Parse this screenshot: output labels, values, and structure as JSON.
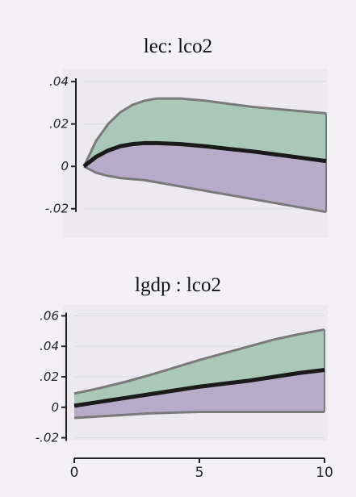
{
  "chart_data": [
    {
      "type": "area",
      "title": "lec: lco2",
      "xlabel": "",
      "ylabel": "",
      "xlim": [
        0,
        10
      ],
      "ylim": [
        -0.022,
        0.045
      ],
      "y_ticks": [
        0.04,
        0.02,
        0,
        -0.02
      ],
      "y_tick_labels": [
        ".04",
        ".02",
        "0",
        "-.02"
      ],
      "show_x_ticks": false,
      "grid": true,
      "x": [
        0,
        0.5,
        1,
        1.5,
        2,
        2.5,
        3,
        4,
        5,
        6,
        7,
        8,
        9,
        10
      ],
      "y": [
        0,
        0.0045,
        0.0075,
        0.0095,
        0.0105,
        0.011,
        0.011,
        0.0105,
        0.0095,
        0.0082,
        0.007,
        0.0055,
        0.004,
        0.0025
      ],
      "lower": [
        0,
        -0.003,
        -0.0045,
        -0.0055,
        -0.006,
        -0.0065,
        -0.0075,
        -0.0095,
        -0.0115,
        -0.0135,
        -0.0155,
        -0.0175,
        -0.0195,
        -0.0215
      ],
      "upper": [
        0,
        0.012,
        0.02,
        0.0255,
        0.029,
        0.031,
        0.032,
        0.032,
        0.031,
        0.0295,
        0.028,
        0.027,
        0.026,
        0.025
      ],
      "colors": {
        "upper_band": "#a3c4b3",
        "lower_band": "#b0a5c5",
        "line": "#1a1a1a",
        "band_edge": "#7a7a7a"
      }
    },
    {
      "type": "area",
      "title": "lgdp : lco2",
      "xlabel": "",
      "ylabel": "",
      "xlim": [
        0,
        10
      ],
      "ylim": [
        -0.025,
        0.065
      ],
      "y_ticks": [
        0.06,
        0.04,
        0.02,
        0,
        -0.02
      ],
      "y_tick_labels": [
        ".06",
        ".04",
        ".02",
        "0",
        "-.02"
      ],
      "x_ticks": [
        0,
        5,
        10
      ],
      "x_tick_labels": [
        "0",
        "5",
        "10"
      ],
      "grid": true,
      "x": [
        0,
        1,
        2,
        3,
        4,
        5,
        6,
        7,
        8,
        9,
        10
      ],
      "y": [
        0.001,
        0.0035,
        0.006,
        0.0085,
        0.011,
        0.0135,
        0.0155,
        0.0175,
        0.02,
        0.0225,
        0.0245
      ],
      "lower": [
        -0.007,
        -0.006,
        -0.005,
        -0.004,
        -0.0035,
        -0.003,
        -0.003,
        -0.003,
        -0.003,
        -0.003,
        -0.003
      ],
      "upper": [
        0.009,
        0.0125,
        0.0165,
        0.021,
        0.026,
        0.031,
        0.0355,
        0.04,
        0.0445,
        0.048,
        0.051
      ],
      "colors": {
        "upper_band": "#a3c4b3",
        "lower_band": "#b0a5c5",
        "line": "#1a1a1a",
        "band_edge": "#7a7a7a"
      }
    }
  ]
}
